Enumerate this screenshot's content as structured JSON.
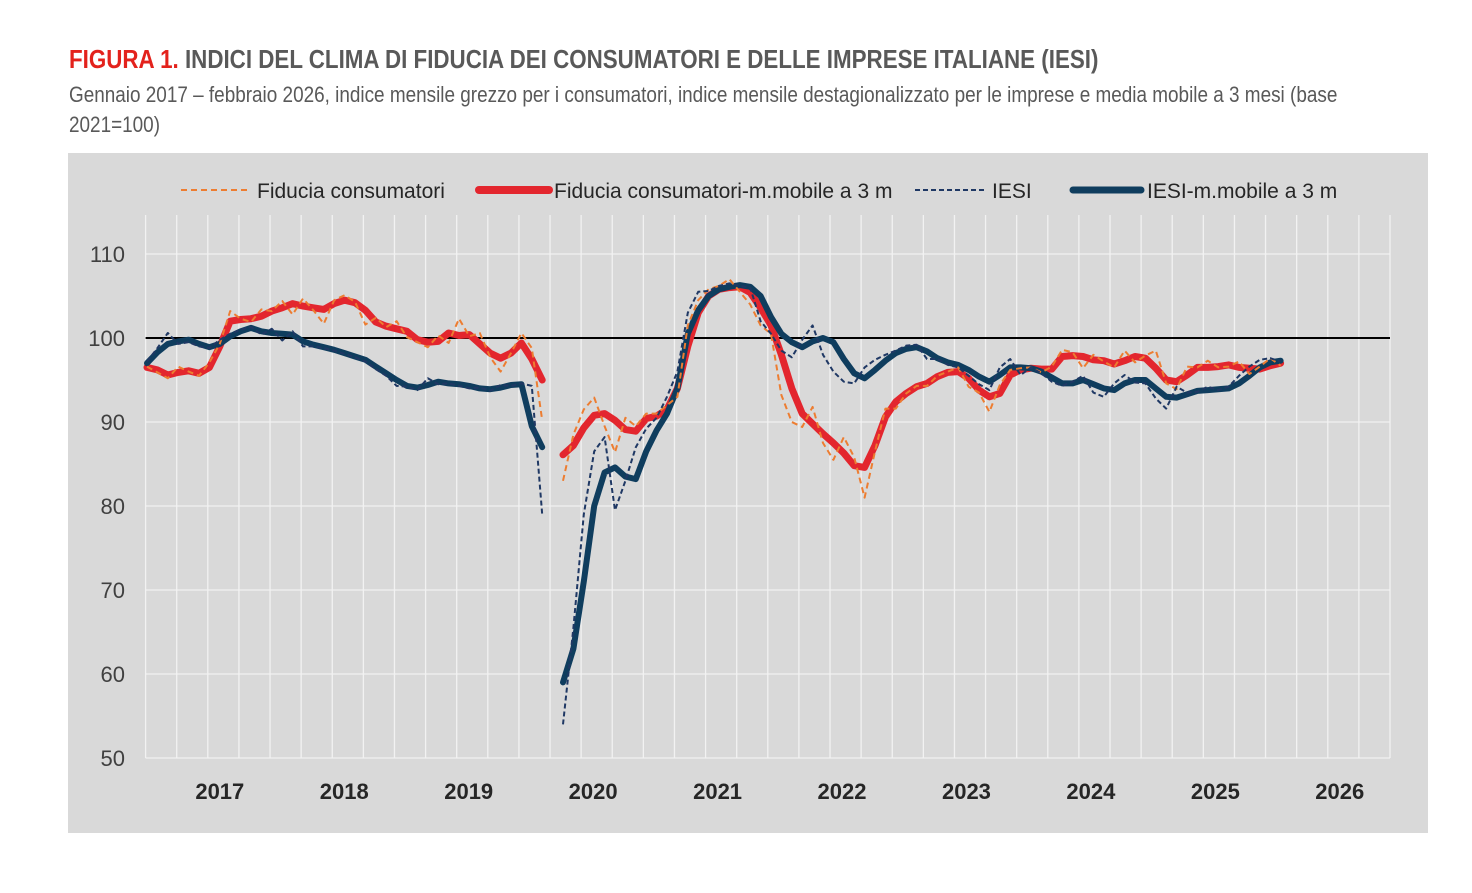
{
  "header": {
    "figure_label": "FIGURA 1.",
    "title": "INDICI DEL CLIMA DI FIDUCIA DEI CONSUMATORI E DELLE IMPRESE ITALIANE (IESI)",
    "subtitle": "Gennaio 2017 – febbraio 2026, indice mensile grezzo per i consumatori, indice mensile destagionalizzato per le imprese e media mobile a 3 mesi (base 2021=100)"
  },
  "chart_data": {
    "type": "line",
    "x_start": "2017-01",
    "x_end": "2026-02",
    "x_frequency": "monthly",
    "x_tick_labels": [
      "2017",
      "2018",
      "2019",
      "2020",
      "2021",
      "2022",
      "2023",
      "2024",
      "2025",
      "2026"
    ],
    "y_tick_labels": [
      "110",
      "100",
      "90",
      "80",
      "70",
      "60",
      "50"
    ],
    "ylim": [
      50,
      110
    ],
    "reference_line": 100,
    "grid": true,
    "legend_position": "top",
    "colors": {
      "consumer_raw": "#ed7d31",
      "consumer_ma": "#e3262e",
      "iesi_raw": "#1f3864",
      "iesi_ma": "#0f3d5e",
      "background": "#d9d9d9"
    },
    "series": [
      {
        "name": "Fiducia consumatori",
        "style": "dashed",
        "values": [
          96.6,
          95.9,
          95.2,
          96.6,
          96.0,
          95.5,
          97.1,
          99.3,
          103.2,
          102.3,
          101.9,
          103.4,
          103.2,
          104.4,
          102.8,
          104.7,
          103.3,
          101.7,
          104.5,
          105.1,
          104.3,
          101.6,
          102.4,
          101.3,
          102.0,
          100.1,
          99.5,
          98.9,
          100.3,
          99.4,
          102.3,
          100.2,
          100.6,
          97.7,
          96.0,
          98.2,
          100.6,
          98.8,
          90.2,
          null,
          83.0,
          88.5,
          91.5,
          92.9,
          89.5,
          86.4,
          90.5,
          89.5,
          91.0,
          91.0,
          92.0,
          93.0,
          101.5,
          104.5,
          105.8,
          106.2,
          107.0,
          105.5,
          104.0,
          101.5,
          100.5,
          93.2,
          90.0,
          89.4,
          91.8,
          87.5,
          85.5,
          88.2,
          85.8,
          81.0,
          86.5,
          91.6,
          91.6,
          93.4,
          94.3,
          94.3,
          95.5,
          96.0,
          96.5,
          94.2,
          93.5,
          91.2,
          94.4,
          96.2,
          96.4,
          96.5,
          95.9,
          96.6,
          98.6,
          98.3,
          96.4,
          98.0,
          97.2,
          96.5,
          98.5,
          97.1,
          97.9,
          98.5,
          94.6,
          93.9,
          96.6,
          96.5,
          97.3,
          96.5,
          96.6,
          97.2,
          95.7,
          96.6,
          97.6,
          96.7
        ]
      },
      {
        "name": "Fiducia consumatori-m.mobile a 3 m",
        "style": "solid",
        "values": [
          96.5,
          96.2,
          95.6,
          95.9,
          96.1,
          95.8,
          96.5,
          99.0,
          102.0,
          102.2,
          102.3,
          102.6,
          103.2,
          103.6,
          104.1,
          103.8,
          103.6,
          103.4,
          104.1,
          104.5,
          104.2,
          103.3,
          101.9,
          101.4,
          101.1,
          100.8,
          99.8,
          99.5,
          99.6,
          100.6,
          100.3,
          100.4,
          99.3,
          98.2,
          97.6,
          98.2,
          99.4,
          97.5,
          95.0,
          null,
          86.1,
          87.2,
          89.3,
          90.8,
          91.0,
          90.2,
          89.1,
          88.9,
          90.4,
          90.7,
          91.5,
          94.0,
          99.0,
          103.0,
          105.0,
          105.8,
          106.0,
          106.1,
          105.4,
          103.6,
          101.5,
          98.0,
          94.0,
          91.0,
          89.8,
          88.6,
          87.5,
          86.3,
          84.8,
          84.6,
          87.2,
          90.6,
          92.4,
          93.4,
          94.2,
          94.6,
          95.4,
          95.9,
          96.0,
          95.2,
          93.8,
          93.0,
          93.4,
          95.6,
          96.2,
          96.4,
          96.3,
          96.3,
          97.8,
          97.9,
          97.8,
          97.4,
          97.3,
          96.9,
          97.3,
          97.8,
          97.6,
          96.4,
          95.0,
          94.8,
          95.6,
          96.5,
          96.5,
          96.6,
          96.8,
          96.5,
          96.4,
          96.3,
          96.7,
          97.0
        ]
      },
      {
        "name": "IESI",
        "style": "dashed",
        "values": [
          97.2,
          98.8,
          100.6,
          99.3,
          99.5,
          99.0,
          98.8,
          99.8,
          100.5,
          101.0,
          101.3,
          100.4,
          101.1,
          99.7,
          100.8,
          99.0,
          99.0,
          98.8,
          98.5,
          98.1,
          97.7,
          97.2,
          96.3,
          95.5,
          94.3,
          94.2,
          93.8,
          95.2,
          94.5,
          94.6,
          94.3,
          94.0,
          94.1,
          93.7,
          94.4,
          94.3,
          94.6,
          94.3,
          79.0,
          null,
          54.0,
          65.5,
          79.0,
          86.5,
          88.2,
          79.5,
          83.0,
          87.0,
          89.2,
          90.5,
          93.0,
          96.0,
          103.0,
          105.5,
          105.6,
          106.2,
          106.5,
          106.2,
          106.0,
          102.0,
          100.5,
          98.5,
          97.7,
          99.8,
          101.5,
          98.0,
          96.0,
          94.8,
          94.6,
          96.5,
          97.4,
          98.0,
          98.5,
          99.1,
          99.2,
          97.5,
          97.5,
          96.8,
          96.5,
          95.5,
          94.5,
          93.8,
          96.5,
          97.5,
          95.6,
          96.5,
          95.8,
          94.8,
          94.3,
          94.8,
          95.5,
          93.5,
          93.0,
          94.6,
          95.6,
          94.7,
          94.6,
          92.8,
          91.6,
          94.2,
          93.5,
          93.6,
          94.2,
          93.8,
          94.2,
          95.5,
          96.6,
          97.4,
          97.6,
          97.2
        ]
      },
      {
        "name": "IESI-m.mobile a 3 m",
        "style": "solid",
        "values": [
          97.0,
          98.3,
          99.3,
          99.6,
          99.8,
          99.3,
          98.9,
          99.3,
          100.2,
          100.8,
          101.2,
          100.8,
          100.6,
          100.5,
          100.4,
          99.6,
          99.2,
          98.9,
          98.6,
          98.2,
          97.8,
          97.4,
          96.6,
          95.8,
          95.0,
          94.3,
          94.1,
          94.4,
          94.8,
          94.6,
          94.5,
          94.3,
          94.0,
          93.9,
          94.1,
          94.4,
          94.5,
          89.5,
          87.0,
          null,
          59.0,
          63.0,
          71.0,
          80.0,
          84.0,
          84.6,
          83.5,
          83.2,
          86.5,
          89.0,
          91.0,
          94.0,
          100.5,
          103.3,
          105.0,
          105.8,
          106.1,
          106.3,
          106.1,
          105.0,
          102.5,
          100.5,
          99.5,
          98.9,
          99.6,
          100.0,
          99.5,
          97.5,
          95.8,
          95.2,
          96.2,
          97.3,
          98.2,
          98.7,
          98.9,
          98.4,
          97.6,
          97.1,
          96.8,
          96.2,
          95.4,
          94.8,
          95.6,
          96.5,
          96.5,
          96.4,
          96.0,
          95.3,
          94.6,
          94.6,
          95.0,
          94.5,
          94.0,
          93.8,
          94.6,
          95.0,
          95.0,
          94.0,
          93.0,
          92.9,
          93.3,
          93.7,
          93.8,
          93.9,
          94.0,
          94.6,
          95.5,
          96.5,
          97.1,
          97.3
        ]
      }
    ]
  }
}
